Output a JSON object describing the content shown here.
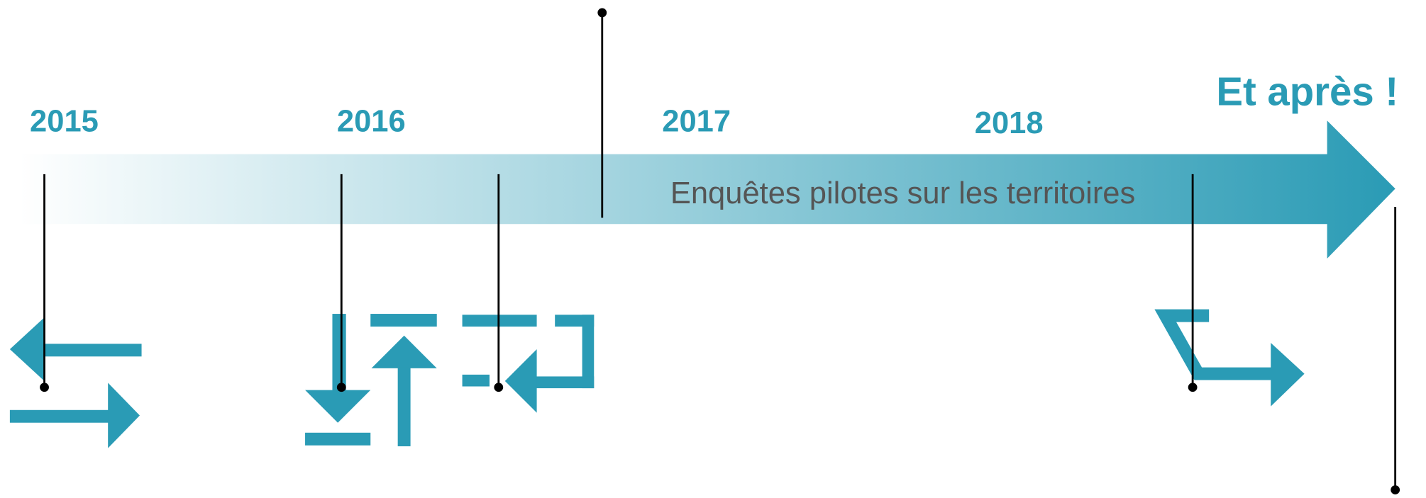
{
  "timeline": {
    "years": [
      "2015",
      "2016",
      "2017",
      "2018"
    ],
    "final_label": "Et après !",
    "bar_label": "Enquêtes pilotes sur les territoires"
  }
}
